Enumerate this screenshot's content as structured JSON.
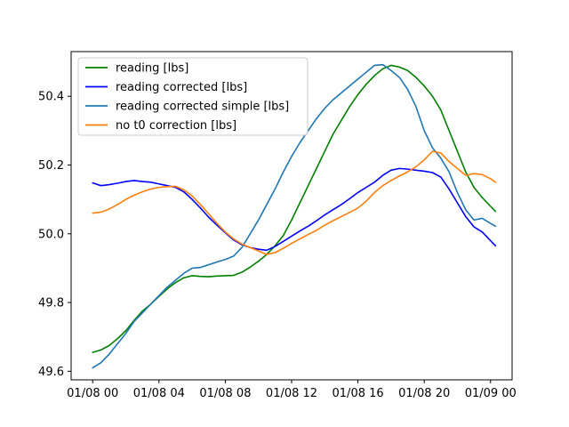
{
  "chart_data": {
    "type": "line",
    "title": "",
    "xlabel": "",
    "ylabel": "",
    "x_axis": {
      "kind": "time",
      "range_hours": [
        -1.3,
        25.3
      ],
      "ticks": [
        {
          "hours": 0,
          "label": "01/08 00"
        },
        {
          "hours": 4,
          "label": "01/08 04"
        },
        {
          "hours": 8,
          "label": "01/08 08"
        },
        {
          "hours": 12,
          "label": "01/08 12"
        },
        {
          "hours": 16,
          "label": "01/08 16"
        },
        {
          "hours": 20,
          "label": "01/08 20"
        },
        {
          "hours": 24,
          "label": "01/09 00"
        }
      ]
    },
    "y_axis": {
      "range": [
        49.575,
        50.53
      ],
      "ticks": [
        {
          "value": 49.6,
          "label": "49.6"
        },
        {
          "value": 49.8,
          "label": "49.8"
        },
        {
          "value": 50.0,
          "label": "50.0"
        },
        {
          "value": 50.2,
          "label": "50.2"
        },
        {
          "value": 50.4,
          "label": "50.4"
        }
      ]
    },
    "grid": false,
    "legend_position": "top-left",
    "series": [
      {
        "name": "reading [lbs]",
        "color": "#008000",
        "points": [
          [
            0,
            49.655
          ],
          [
            0.5,
            49.662
          ],
          [
            1,
            49.675
          ],
          [
            1.5,
            49.695
          ],
          [
            2,
            49.718
          ],
          [
            2.5,
            49.748
          ],
          [
            3,
            49.775
          ],
          [
            3.5,
            49.795
          ],
          [
            4,
            49.818
          ],
          [
            4.5,
            49.84
          ],
          [
            5,
            49.858
          ],
          [
            5.5,
            49.872
          ],
          [
            6,
            49.878
          ],
          [
            6.5,
            49.876
          ],
          [
            7,
            49.875
          ],
          [
            7.5,
            49.877
          ],
          [
            8,
            49.878
          ],
          [
            8.5,
            49.879
          ],
          [
            9,
            49.888
          ],
          [
            9.5,
            49.903
          ],
          [
            10,
            49.92
          ],
          [
            10.5,
            49.94
          ],
          [
            11,
            49.965
          ],
          [
            11.5,
            49.995
          ],
          [
            12,
            50.04
          ],
          [
            12.5,
            50.09
          ],
          [
            13,
            50.14
          ],
          [
            13.5,
            50.19
          ],
          [
            14,
            50.24
          ],
          [
            14.5,
            50.29
          ],
          [
            15,
            50.33
          ],
          [
            15.5,
            50.37
          ],
          [
            16,
            50.405
          ],
          [
            16.5,
            50.435
          ],
          [
            17,
            50.46
          ],
          [
            17.5,
            50.48
          ],
          [
            18,
            50.49
          ],
          [
            18.5,
            50.485
          ],
          [
            19,
            50.475
          ],
          [
            19.5,
            50.455
          ],
          [
            20,
            50.43
          ],
          [
            20.5,
            50.4
          ],
          [
            21,
            50.36
          ],
          [
            21.5,
            50.3
          ],
          [
            22,
            50.24
          ],
          [
            22.5,
            50.18
          ],
          [
            23,
            50.135
          ],
          [
            23.5,
            50.105
          ],
          [
            24,
            50.08
          ],
          [
            24.3,
            50.065
          ]
        ]
      },
      {
        "name": "reading corrected [lbs]",
        "color": "#0000ff",
        "points": [
          [
            0,
            50.148
          ],
          [
            0.5,
            50.14
          ],
          [
            1,
            50.143
          ],
          [
            1.5,
            50.147
          ],
          [
            2,
            50.152
          ],
          [
            2.5,
            50.155
          ],
          [
            3,
            50.152
          ],
          [
            3.5,
            50.15
          ],
          [
            4,
            50.145
          ],
          [
            4.5,
            50.14
          ],
          [
            5,
            50.135
          ],
          [
            5.5,
            50.122
          ],
          [
            6,
            50.1
          ],
          [
            6.5,
            50.075
          ],
          [
            7,
            50.048
          ],
          [
            7.5,
            50.025
          ],
          [
            8,
            50.003
          ],
          [
            8.5,
            49.982
          ],
          [
            9,
            49.968
          ],
          [
            9.5,
            49.96
          ],
          [
            10,
            49.955
          ],
          [
            10.5,
            49.952
          ],
          [
            11,
            49.963
          ],
          [
            11.5,
            49.978
          ],
          [
            12,
            49.993
          ],
          [
            12.5,
            50.008
          ],
          [
            13,
            50.022
          ],
          [
            13.5,
            50.038
          ],
          [
            14,
            50.055
          ],
          [
            14.5,
            50.07
          ],
          [
            15,
            50.085
          ],
          [
            15.5,
            50.102
          ],
          [
            16,
            50.12
          ],
          [
            16.5,
            50.135
          ],
          [
            17,
            50.15
          ],
          [
            17.5,
            50.17
          ],
          [
            18,
            50.185
          ],
          [
            18.5,
            50.19
          ],
          [
            19,
            50.188
          ],
          [
            19.5,
            50.185
          ],
          [
            20,
            50.182
          ],
          [
            20.5,
            50.178
          ],
          [
            21,
            50.165
          ],
          [
            21.5,
            50.13
          ],
          [
            22,
            50.09
          ],
          [
            22.5,
            50.05
          ],
          [
            23,
            50.02
          ],
          [
            23.5,
            50.005
          ],
          [
            24,
            49.98
          ],
          [
            24.3,
            49.965
          ]
        ]
      },
      {
        "name": "reading corrected simple [lbs]",
        "color": "#1f77b4",
        "points": [
          [
            0,
            49.61
          ],
          [
            0.5,
            49.625
          ],
          [
            1,
            49.65
          ],
          [
            1.5,
            49.68
          ],
          [
            2,
            49.71
          ],
          [
            2.5,
            49.745
          ],
          [
            3,
            49.77
          ],
          [
            3.5,
            49.795
          ],
          [
            4,
            49.82
          ],
          [
            4.5,
            49.845
          ],
          [
            5,
            49.865
          ],
          [
            5.5,
            49.885
          ],
          [
            6,
            49.9
          ],
          [
            6.5,
            49.902
          ],
          [
            7,
            49.91
          ],
          [
            7.5,
            49.918
          ],
          [
            8,
            49.925
          ],
          [
            8.5,
            49.935
          ],
          [
            9,
            49.96
          ],
          [
            9.5,
            50.0
          ],
          [
            10,
            50.04
          ],
          [
            10.5,
            50.085
          ],
          [
            11,
            50.13
          ],
          [
            11.5,
            50.18
          ],
          [
            12,
            50.225
          ],
          [
            12.5,
            50.265
          ],
          [
            13,
            50.3
          ],
          [
            13.5,
            50.335
          ],
          [
            14,
            50.365
          ],
          [
            14.5,
            50.39
          ],
          [
            15,
            50.41
          ],
          [
            15.5,
            50.43
          ],
          [
            16,
            50.45
          ],
          [
            16.5,
            50.47
          ],
          [
            17,
            50.49
          ],
          [
            17.5,
            50.492
          ],
          [
            18,
            50.475
          ],
          [
            18.5,
            50.455
          ],
          [
            19,
            50.42
          ],
          [
            19.5,
            50.37
          ],
          [
            20,
            50.3
          ],
          [
            20.5,
            50.25
          ],
          [
            21,
            50.22
          ],
          [
            21.5,
            50.18
          ],
          [
            22,
            50.12
          ],
          [
            22.5,
            50.07
          ],
          [
            23,
            50.04
          ],
          [
            23.5,
            50.045
          ],
          [
            24,
            50.03
          ],
          [
            24.3,
            50.022
          ]
        ]
      },
      {
        "name": "no t0 correction [lbs]",
        "color": "#ff7f0e",
        "points": [
          [
            0,
            50.06
          ],
          [
            0.5,
            50.063
          ],
          [
            1,
            50.072
          ],
          [
            1.5,
            50.085
          ],
          [
            2,
            50.1
          ],
          [
            2.5,
            50.112
          ],
          [
            3,
            50.122
          ],
          [
            3.5,
            50.13
          ],
          [
            4,
            50.135
          ],
          [
            4.5,
            50.137
          ],
          [
            5,
            50.138
          ],
          [
            5.5,
            50.128
          ],
          [
            6,
            50.11
          ],
          [
            6.5,
            50.085
          ],
          [
            7,
            50.058
          ],
          [
            7.5,
            50.03
          ],
          [
            8,
            50.005
          ],
          [
            8.5,
            49.985
          ],
          [
            9,
            49.97
          ],
          [
            9.5,
            49.96
          ],
          [
            10,
            49.95
          ],
          [
            10.5,
            49.94
          ],
          [
            11,
            49.945
          ],
          [
            11.5,
            49.958
          ],
          [
            12,
            49.972
          ],
          [
            12.5,
            49.985
          ],
          [
            13,
            49.998
          ],
          [
            13.5,
            50.01
          ],
          [
            14,
            50.025
          ],
          [
            14.5,
            50.038
          ],
          [
            15,
            50.05
          ],
          [
            15.5,
            50.062
          ],
          [
            16,
            50.075
          ],
          [
            16.5,
            50.095
          ],
          [
            17,
            50.12
          ],
          [
            17.5,
            50.14
          ],
          [
            18,
            50.155
          ],
          [
            18.5,
            50.168
          ],
          [
            19,
            50.18
          ],
          [
            19.5,
            50.195
          ],
          [
            20,
            50.215
          ],
          [
            20.5,
            50.24
          ],
          [
            21,
            50.235
          ],
          [
            21.5,
            50.21
          ],
          [
            22,
            50.19
          ],
          [
            22.5,
            50.17
          ],
          [
            23,
            50.175
          ],
          [
            23.5,
            50.172
          ],
          [
            24,
            50.16
          ],
          [
            24.3,
            50.15
          ]
        ]
      }
    ]
  }
}
